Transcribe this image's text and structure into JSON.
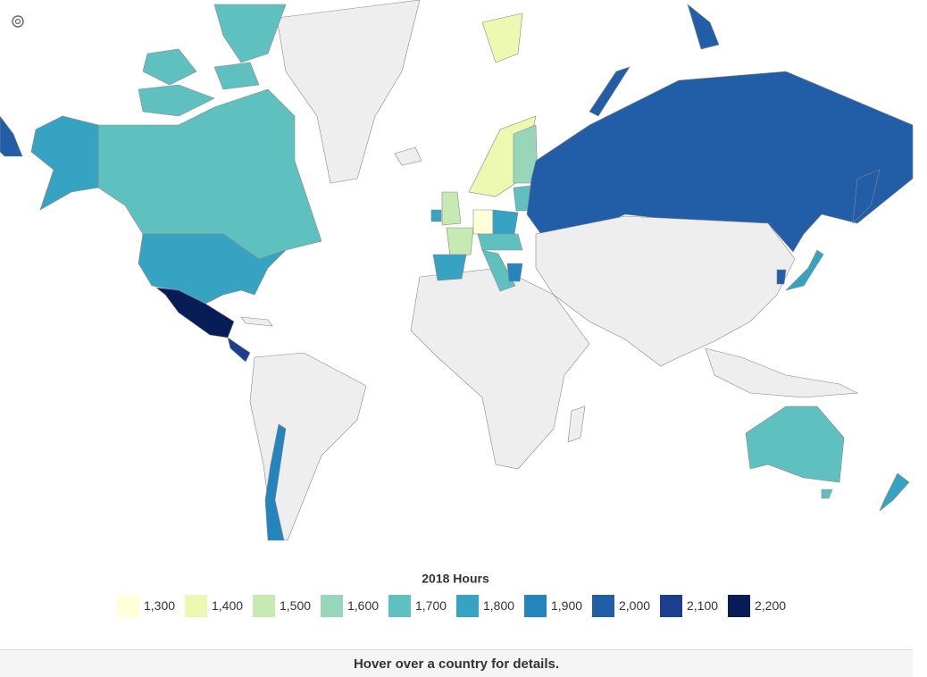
{
  "map": {
    "legend": {
      "title": "2018 Hours",
      "items": [
        {
          "value": 1300,
          "label": "1,300",
          "color": "#ffffd9"
        },
        {
          "value": 1400,
          "label": "1,400",
          "color": "#edf8b1"
        },
        {
          "value": 1500,
          "label": "1,500",
          "color": "#c7e9b4"
        },
        {
          "value": 1600,
          "label": "1,600",
          "color": "#97d6b9"
        },
        {
          "value": 1700,
          "label": "1,700",
          "color": "#5fc0c0"
        },
        {
          "value": 1800,
          "label": "1,800",
          "color": "#37a3c2"
        },
        {
          "value": 1900,
          "label": "1,900",
          "color": "#2385bc"
        },
        {
          "value": 2000,
          "label": "2,000",
          "color": "#225ea8"
        },
        {
          "value": 2100,
          "label": "2,100",
          "color": "#1d3d8f"
        },
        {
          "value": 2200,
          "label": "2,200",
          "color": "#081d58"
        }
      ]
    },
    "footer": "Hover over a country for details."
  }
}
